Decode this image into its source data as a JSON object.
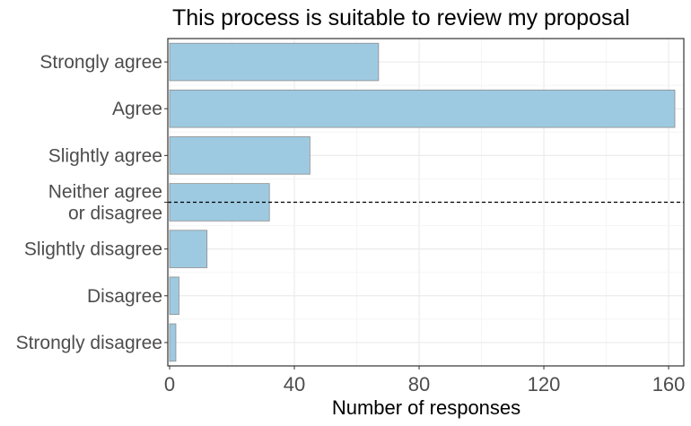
{
  "chart_data": {
    "type": "bar",
    "orientation": "horizontal",
    "title": "This process is suitable to review my proposal",
    "xlabel": "Number of responses",
    "ylabel": "",
    "categories": [
      "Strongly agree",
      "Agree",
      "Slightly agree",
      "Neither agree\nor disagree",
      "Slightly disagree",
      "Disagree",
      "Strongly disagree"
    ],
    "values": [
      67,
      162,
      45,
      32,
      12,
      3,
      2
    ],
    "xlim": [
      0,
      162
    ],
    "x_ticks": [
      0,
      40,
      80,
      120,
      160
    ],
    "reference_line": {
      "category_index": 3,
      "style": "dashed",
      "color": "#000000"
    },
    "grid": true,
    "legend": "none",
    "colors": {
      "bar_fill": "#9ecae1",
      "bar_stroke": "#8c8c8c",
      "panel_border": "#333333",
      "grid_major": "#ebebeb",
      "grid_minor": "#f5f5f5",
      "tick_text": "#4d4d4d",
      "title_text": "#000000",
      "axis_title_text": "#000000"
    }
  }
}
